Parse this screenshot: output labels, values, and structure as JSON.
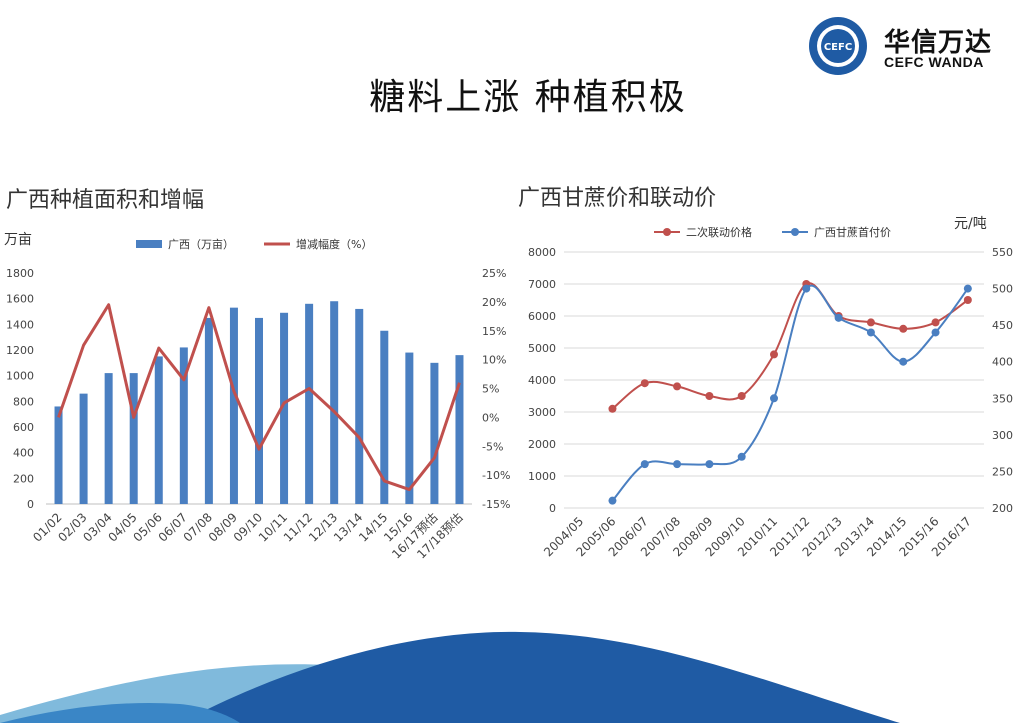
{
  "slide": {
    "title": "糖料上涨  种植积极"
  },
  "logo": {
    "name_cn": "华信万达",
    "name_en": "CEFC WANDA",
    "emblem_text": "CEFC"
  },
  "colors": {
    "blue": "#4a7fc1",
    "red": "#c0504d",
    "grid": "#d9d9d9",
    "wave_dark": "#1f5ba4",
    "wave_light": "#6aaed6"
  },
  "chart_data": [
    {
      "type": "bar",
      "title": "广西种植面积和增幅",
      "ylabel": "万亩",
      "categories": [
        "01/02",
        "02/03",
        "03/04",
        "04/05",
        "05/06",
        "06/07",
        "07/08",
        "08/09",
        "09/10",
        "10/11",
        "11/12",
        "12/13",
        "13/14",
        "14/15",
        "15/16",
        "16/17预估",
        "17/18预估"
      ],
      "series": [
        {
          "name": "广西（万亩）",
          "type": "bar",
          "axis": "left",
          "values": [
            760,
            860,
            1020,
            1020,
            1150,
            1220,
            1450,
            1530,
            1450,
            1490,
            1560,
            1580,
            1520,
            1350,
            1180,
            1100,
            1160
          ]
        },
        {
          "name": "增减幅度（%）",
          "type": "line",
          "axis": "right",
          "values": [
            0,
            12.5,
            19.5,
            0,
            12,
            6.5,
            19,
            4.5,
            -5.5,
            2.5,
            5,
            1,
            -3.5,
            -11,
            -12.5,
            -7,
            6
          ]
        }
      ],
      "ylim": [
        0,
        1800
      ],
      "yticks": [
        "0",
        "200",
        "400",
        "600",
        "800",
        "1000",
        "1200",
        "1400",
        "1600",
        "1800"
      ],
      "y2lim": [
        -15,
        25
      ],
      "y2ticks": [
        "-15%",
        "-10%",
        "-5%",
        "0%",
        "5%",
        "10%",
        "15%",
        "20%",
        "25%"
      ],
      "legend": "top"
    },
    {
      "type": "line",
      "title": "广西甘蔗价和联动价",
      "y2label": "元/吨",
      "categories": [
        "2004/05",
        "2005/06",
        "2006/07",
        "2007/08",
        "2008/09",
        "2009/10",
        "2010/11",
        "2011/12",
        "2012/13",
        "2013/14",
        "2014/15",
        "2015/16",
        "2016/17"
      ],
      "series": [
        {
          "name": "二次联动价格",
          "axis": "left",
          "values": [
            null,
            3100,
            3900,
            3800,
            3500,
            3500,
            4800,
            7000,
            6000,
            5800,
            5600,
            5800,
            6500
          ]
        },
        {
          "name": "广西甘蔗首付价",
          "axis": "right",
          "values": [
            null,
            210,
            260,
            260,
            260,
            270,
            350,
            500,
            460,
            440,
            400,
            440,
            500
          ]
        }
      ],
      "ylim": [
        0,
        8000
      ],
      "yticks": [
        "0",
        "1000",
        "2000",
        "3000",
        "4000",
        "5000",
        "6000",
        "7000",
        "8000"
      ],
      "y2lim": [
        200,
        550
      ],
      "y2ticks": [
        "200",
        "250",
        "300",
        "350",
        "400",
        "450",
        "500",
        "550"
      ],
      "legend": "top"
    }
  ]
}
